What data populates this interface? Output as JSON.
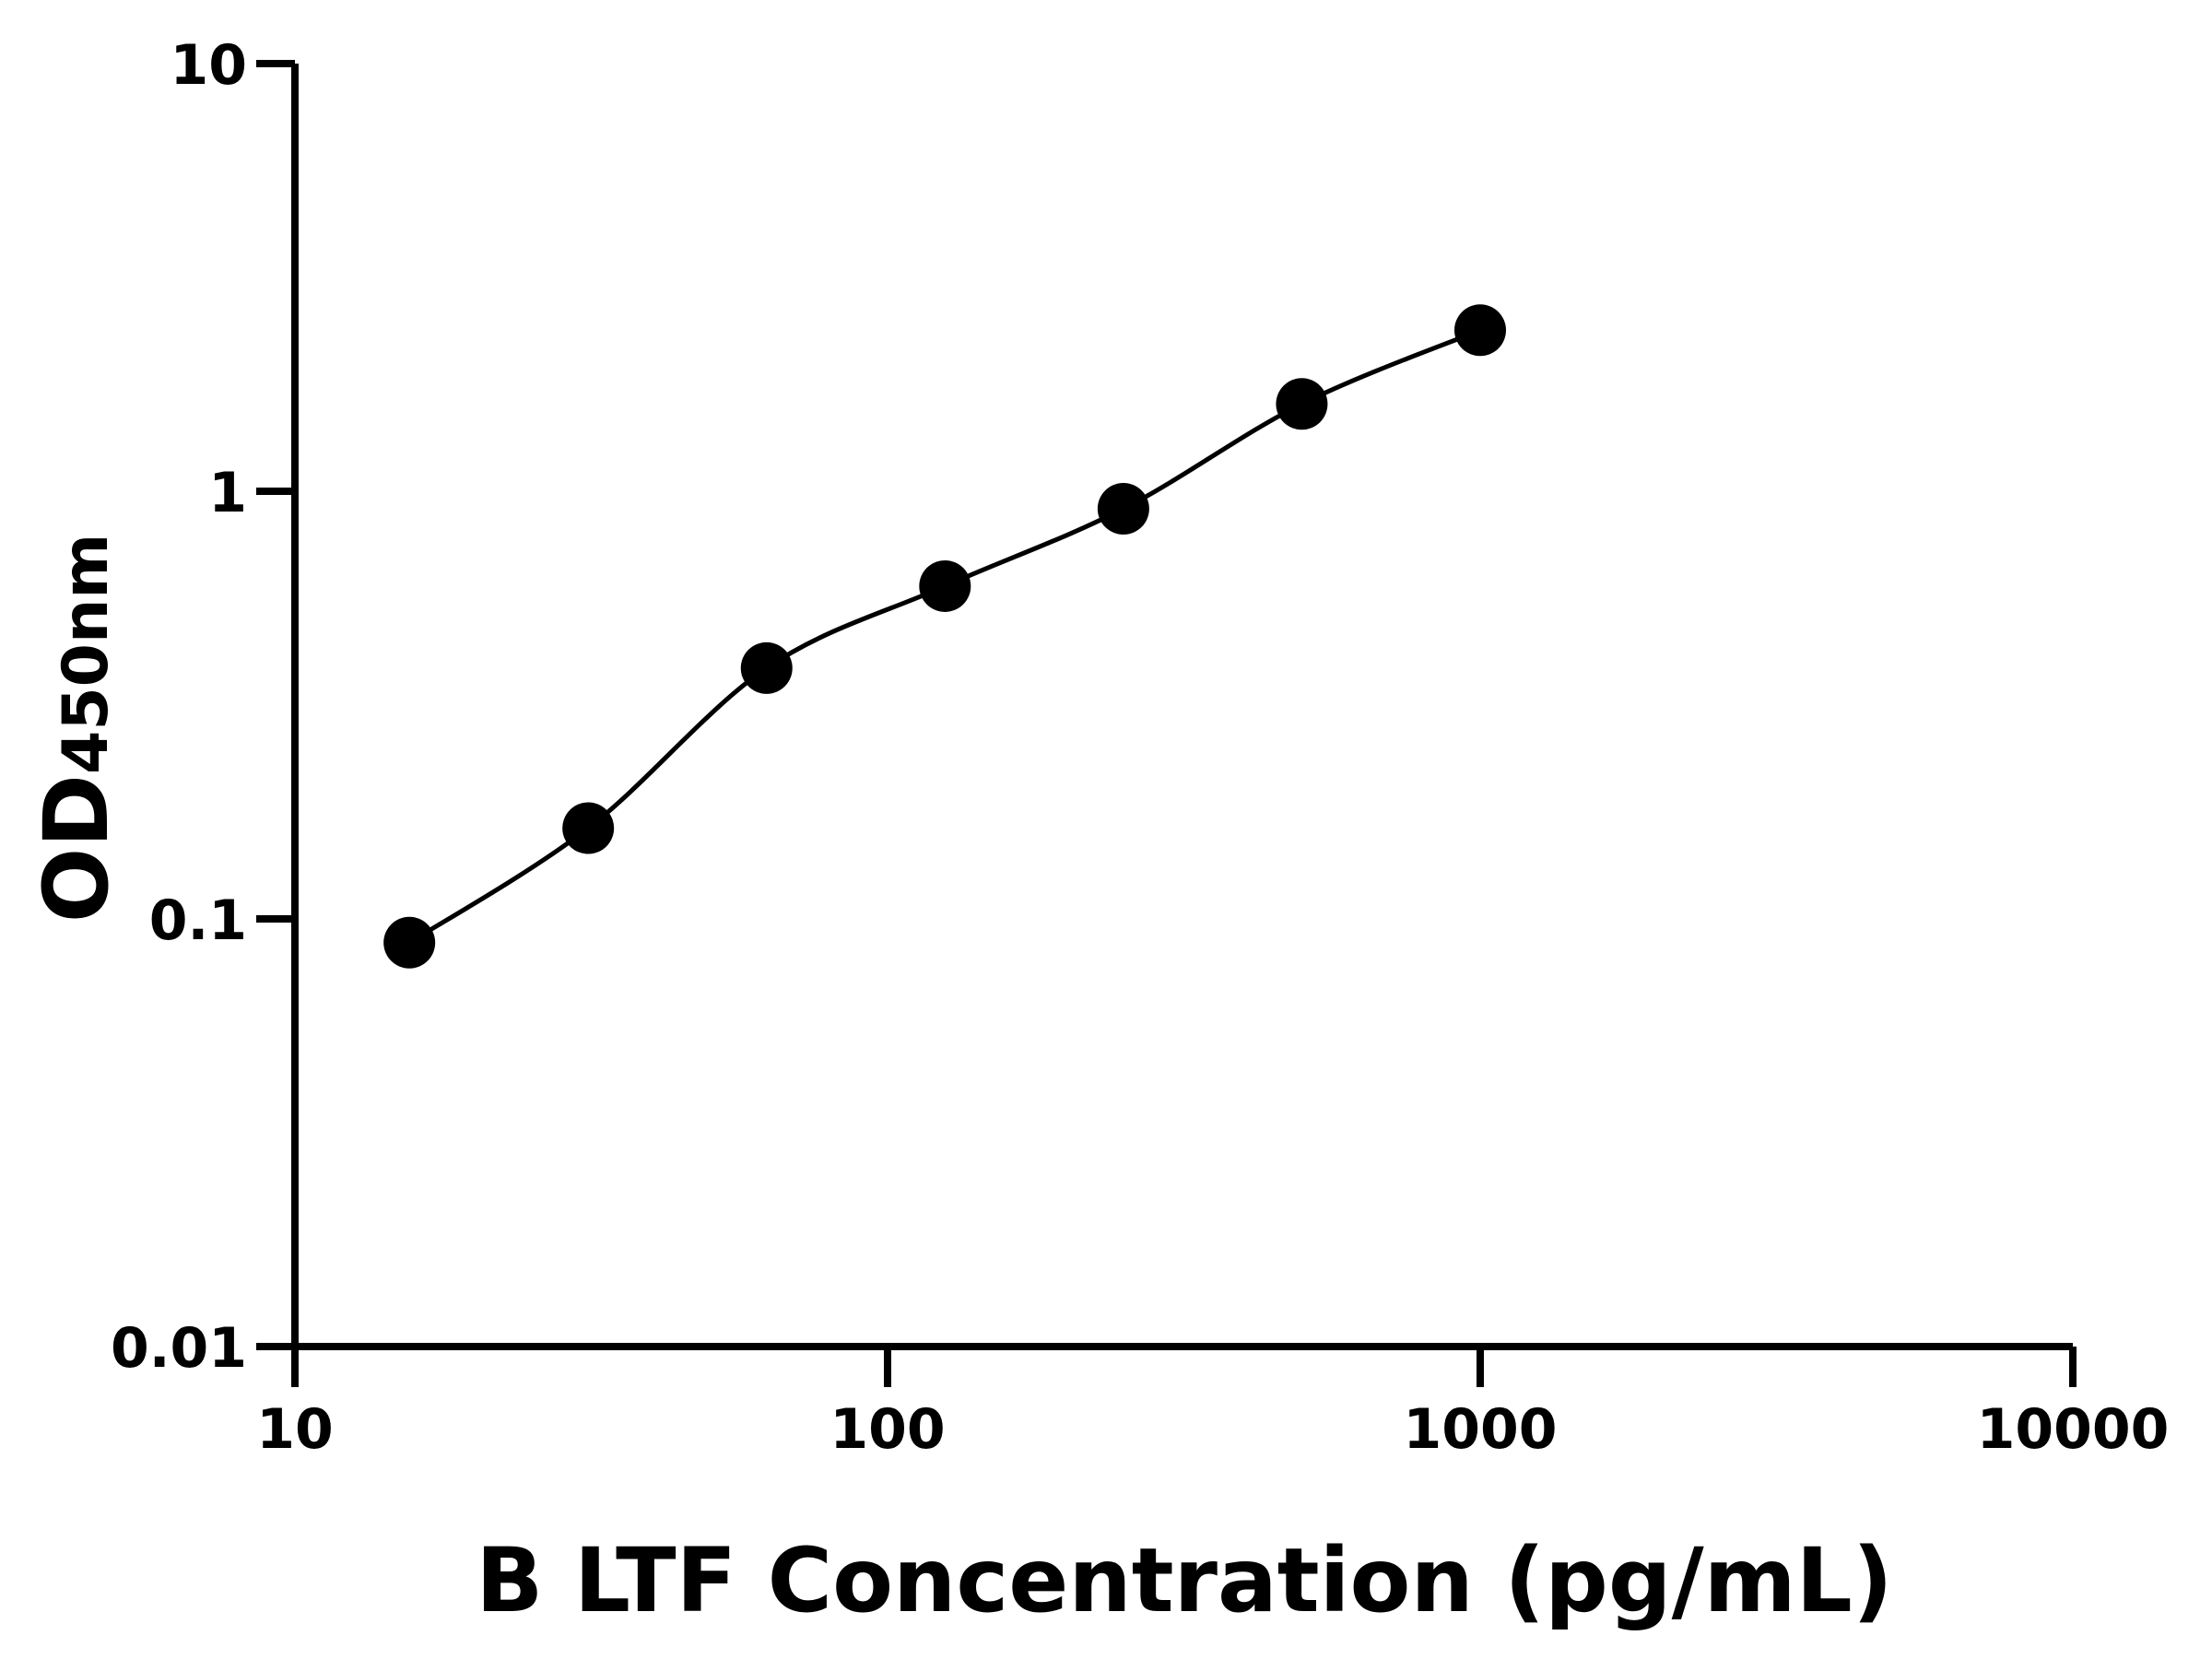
{
  "chart_data": {
    "type": "line",
    "markers": true,
    "xlabel": "B LTF Concentration (pg/mL)",
    "ylabel": "OD",
    "ylabel_sub": "450nm",
    "x": [
      15.6,
      31.25,
      62.5,
      125,
      250,
      500,
      1000
    ],
    "series": [
      {
        "color": "#000000",
        "values": [
          0.088,
          0.163,
          0.386,
          0.6,
          0.91,
          1.6,
          2.38
        ]
      }
    ],
    "xlim": [
      10,
      10000
    ],
    "xticks": [
      10,
      100,
      1000,
      10000
    ],
    "xlog": true,
    "ylim": [
      0.01,
      10
    ],
    "yticks": [
      0.01,
      0.1,
      1,
      10
    ],
    "ylog": true,
    "grid": false
  }
}
